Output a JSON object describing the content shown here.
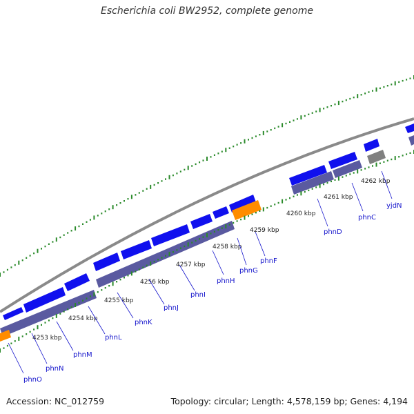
{
  "title": "Escherichia coli BW2952, complete genome",
  "footer": {
    "accession": "Accession: NC_012759",
    "topology": "Topology: circular; Length: 4,578,159 bp; Genes: 4,194"
  },
  "colors": {
    "cds_forward": "#1010ee",
    "cds_reverse": "#5a5aa0",
    "highlight": "#ff8c00",
    "other": "#808080",
    "backbone": "#8a8a8a",
    "ticks": "#2a8a2a",
    "gene_label": "#1515cc"
  },
  "kbp_labels": [
    "4253 kbp",
    "4254 kbp",
    "4255 kbp",
    "4256 kbp",
    "4257 kbp",
    "4258 kbp",
    "4259 kbp",
    "4260 kbp",
    "4261 kbp",
    "4262 kbp"
  ],
  "gene_labels": [
    "phnO",
    "phnN",
    "phnM",
    "phnL",
    "phnK",
    "phnJ",
    "phnI",
    "phnH",
    "phnG",
    "phnF",
    "phnD",
    "phnC",
    "yjdN"
  ]
}
